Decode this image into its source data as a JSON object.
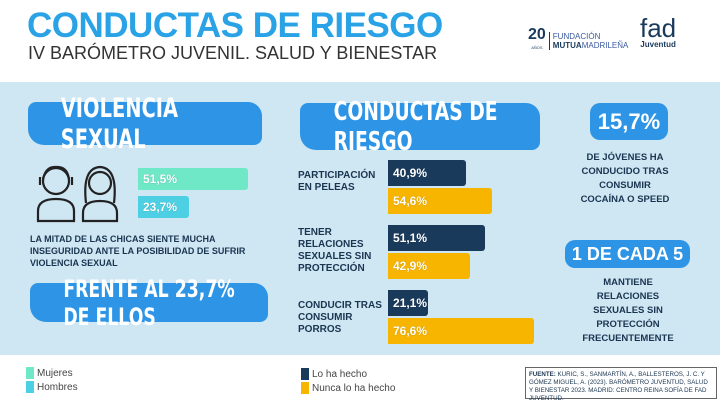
{
  "header": {
    "title": "CONDUCTAS DE RIESGO",
    "subtitle": "IV BARÓMETRO JUVENIL. SALUD Y BIENESTAR",
    "logo_mutua": {
      "years": "20",
      "years_label": "AÑOS",
      "line1": "FUNDACIÓN",
      "line2_bold": "MUTUA",
      "line2": "MADRILEÑA"
    },
    "logo_fad": {
      "name": "fad",
      "sub": "Juventud"
    }
  },
  "violencia": {
    "title": "VIOLENCIA SEXUAL",
    "description": "LA MITAD DE LAS CHICAS SIENTE MUCHA INSEGURIDAD ANTE LA POSIBILIDAD DE SUFRIR VIOLENCIA SEXUAL",
    "highlight": "FRENTE AL 23,7% DE ELLOS",
    "icons": [
      "male-avatar-icon",
      "female-avatar-icon"
    ]
  },
  "conductas": {
    "title": "CONDUCTAS DE RIESGO"
  },
  "stats": [
    {
      "value": "15,7%",
      "text": "DE JÓVENES HA CONDUCIDO TRAS CONSUMIR COCAÍNA O SPEED"
    },
    {
      "value": "1 DE CADA 5",
      "text": "MANTIENE RELACIONES SEXUALES SIN PROTECCIÓN FRECUENTEMENTE"
    }
  ],
  "legend": {
    "mujeres": "Mujeres",
    "hombres": "Hombres",
    "hecho": "Lo ha hecho",
    "nunca": "Nunca lo ha hecho"
  },
  "source": {
    "label": "FUENTE:",
    "text": " KURIC, S., SANMARTÍN, A., BALLESTEROS, J. C. Y GÓMEZ MIGUEL, A. (2023). BARÓMETRO JUVENTUD, SALUD Y BIENESTAR 2023. MADRID: CENTRO REINA SOFÍA DE FAD JUVENTUD."
  },
  "colors": {
    "accent": "#2e95e6",
    "mujeres": "#6fe8c8",
    "hombres": "#4dd0e4",
    "hecho": "#1a3a5c",
    "nunca": "#f7b500",
    "band": "#cfe6f3"
  },
  "chart_data": [
    {
      "type": "bar",
      "orientation": "horizontal",
      "title": "VIOLENCIA SEXUAL",
      "categories": [
        "Mujeres",
        "Hombres"
      ],
      "values": [
        51.5,
        23.7
      ],
      "labels": [
        "51,5%",
        "23,7%"
      ],
      "unit": "%"
    },
    {
      "type": "bar",
      "orientation": "horizontal",
      "title": "CONDUCTAS DE RIESGO",
      "categories": [
        "PARTICIPACIÓN EN PELEAS",
        "TENER RELACIONES SEXUALES SIN PROTECCIÓN",
        "CONDUCIR TRAS CONSUMIR PORROS"
      ],
      "series": [
        {
          "name": "Lo ha hecho",
          "values": [
            40.9,
            51.1,
            21.1
          ],
          "labels": [
            "40,9%",
            "51,1%",
            "21,1%"
          ]
        },
        {
          "name": "Nunca lo ha hecho",
          "values": [
            54.6,
            42.9,
            76.6
          ],
          "labels": [
            "54,6%",
            "42,9%",
            "76,6%"
          ]
        }
      ],
      "unit": "%",
      "legend": "bottom"
    }
  ]
}
